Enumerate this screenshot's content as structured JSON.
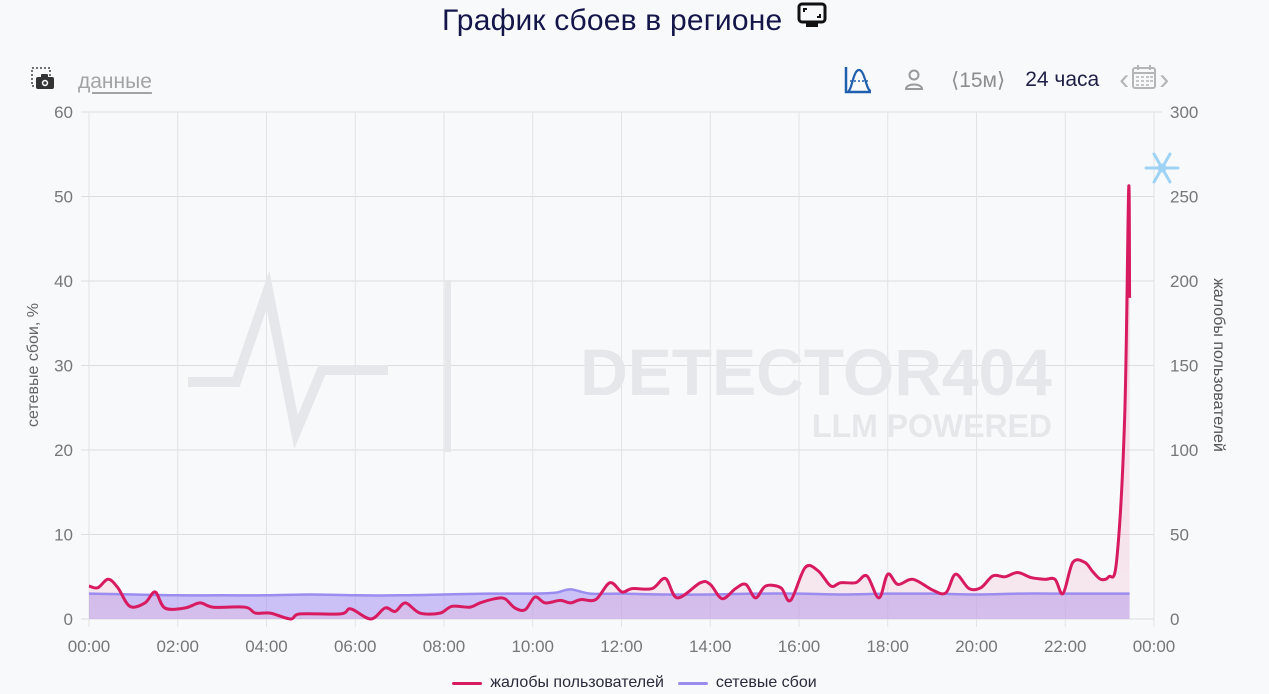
{
  "header": {
    "title": "График сбоев в регионе",
    "title_icon": "screen-icon"
  },
  "toolbar": {
    "screenshot_icon": "camera-icon",
    "data_link": "данные",
    "chart_type_icon": "bell-curve-icon",
    "user_icon": "person-icon",
    "interval": "⟨15м⟩",
    "range": "24 часа",
    "calendar_prev": "‹",
    "calendar_icon": "calendar-icon",
    "calendar_next": "›"
  },
  "watermark": {
    "brand": "DETECTOR404",
    "tagline": "LLM POWERED"
  },
  "colors": {
    "complaints": "#d81b60",
    "outages": "#9b8cf0",
    "title": "#14164a",
    "accent": "#1f5fad",
    "snowflake": "#9fd3f5"
  },
  "legend": [
    {
      "label": "жалобы пользователей",
      "color": "#d81b60"
    },
    {
      "label": "сетевые сбои",
      "color": "#9b8cf0"
    }
  ],
  "chart_data": {
    "type": "area",
    "title": "График сбоев в регионе",
    "xlabel": "",
    "ylabel_left": "сетевые сбои, %",
    "ylabel_right": "жалобы пользователей",
    "ylim_left": [
      0,
      60
    ],
    "ylim_right": [
      0,
      300
    ],
    "yticks_left": [
      0,
      10,
      20,
      30,
      40,
      50,
      60
    ],
    "yticks_right": [
      0,
      50,
      100,
      150,
      200,
      250,
      300
    ],
    "xticks": [
      "00:00",
      "02:00",
      "04:00",
      "06:00",
      "08:00",
      "10:00",
      "12:00",
      "14:00",
      "16:00",
      "18:00",
      "20:00",
      "22:00",
      "00:00"
    ],
    "grid": true,
    "legend_position": "bottom",
    "annotation": "snowflake icon near 00:00 at ~270",
    "series": [
      {
        "name": "жалобы пользователей",
        "axis": "right",
        "x_hours": [
          0,
          0.2,
          0.43,
          0.65,
          0.92,
          1.26,
          1.49,
          1.71,
          2.16,
          2.5,
          2.8,
          3.52,
          3.75,
          4.09,
          4.54,
          4.76,
          5.67,
          5.9,
          6.35,
          6.67,
          6.9,
          7.13,
          7.46,
          7.91,
          8.18,
          8.58,
          8.81,
          9.15,
          9.37,
          9.6,
          9.83,
          10.05,
          10.28,
          10.62,
          10.85,
          11.08,
          11.42,
          11.74,
          12.01,
          12.24,
          12.69,
          12.99,
          13.26,
          13.78,
          14.0,
          14.27,
          14.57,
          14.8,
          15.02,
          15.25,
          15.59,
          15.81,
          16.14,
          16.43,
          16.72,
          16.94,
          17.28,
          17.53,
          17.8,
          18.0,
          18.23,
          18.57,
          19.02,
          19.31,
          19.53,
          19.83,
          20.1,
          20.37,
          20.64,
          20.93,
          21.23,
          21.54,
          21.77,
          21.95,
          22.17,
          22.44,
          22.62,
          22.8,
          22.98,
          23.16,
          23.34,
          23.43,
          23.45
        ],
        "values": [
          19.5,
          18.5,
          23.5,
          18.5,
          7.5,
          9.5,
          16,
          6.5,
          6.5,
          9.5,
          7,
          7,
          3.5,
          3.5,
          0,
          3,
          3,
          6,
          0,
          6.5,
          4.5,
          9.5,
          3.5,
          3.5,
          7.5,
          7,
          9.5,
          12,
          12,
          6.5,
          5.5,
          13,
          9.5,
          11,
          9.5,
          11.5,
          11.5,
          21.5,
          16,
          18,
          18,
          24,
          12.5,
          21.5,
          20.5,
          12,
          18,
          20.5,
          12.5,
          19.5,
          18.5,
          11,
          30.5,
          28.5,
          19.5,
          21.5,
          21.5,
          25.5,
          12.5,
          26.5,
          20.5,
          23.5,
          17,
          15.5,
          26.5,
          18,
          18.5,
          25.5,
          25,
          27.5,
          24.5,
          23.5,
          23.5,
          15,
          33.5,
          33.5,
          28,
          23.5,
          25,
          35,
          120,
          255,
          190
        ]
      },
      {
        "name": "сетевые сбои",
        "axis": "left",
        "x_hours": [
          0,
          1,
          2,
          3,
          4,
          5,
          6,
          7,
          8,
          9,
          10,
          10.5,
          10.85,
          11.3,
          12,
          13,
          14,
          15,
          16,
          17,
          18,
          19,
          20,
          21,
          22,
          23,
          23.45
        ],
        "values": [
          3.0,
          2.9,
          2.8,
          2.8,
          2.8,
          2.9,
          2.8,
          2.8,
          2.9,
          3.0,
          3.0,
          3.1,
          3.5,
          3.0,
          3.0,
          2.9,
          2.9,
          3.0,
          3.0,
          2.9,
          3.0,
          3.0,
          2.9,
          3.0,
          3.0,
          3.0,
          3.0
        ]
      }
    ]
  }
}
